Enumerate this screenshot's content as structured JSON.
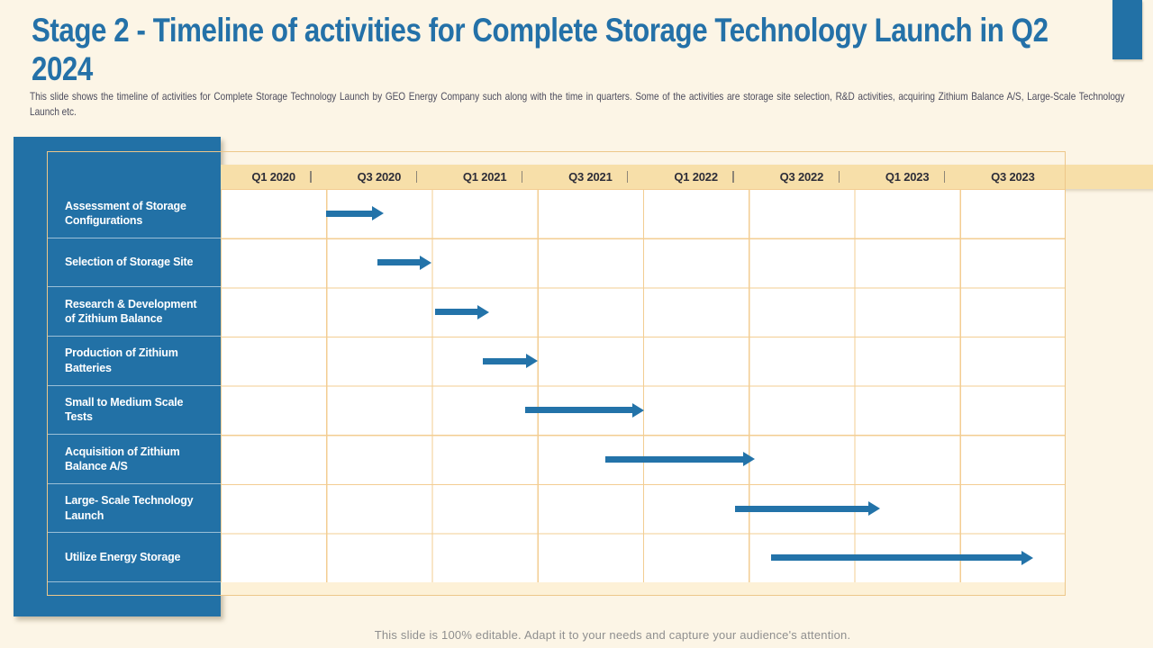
{
  "slide": {
    "title": "Stage 2 - Timeline of activities for Complete Storage Technology Launch in Q2 2024",
    "subtitle": "This slide shows the timeline of activities for Complete Storage Technology Launch by GEO Energy Company such along with the time in quarters. Some of the activities are storage site selection, R&D activities, acquiring Zithium Balance A/S, Large-Scale Technology Launch etc.",
    "footer": "This slide is 100% editable. Adapt it to your needs and capture your audience's attention."
  },
  "colors": {
    "background": "#fcf5e6",
    "title_blue": "#2471a8",
    "subtitle_text": "#4b4b5c",
    "panel_blue": "#2271a6",
    "arrow_blue": "#2373a9",
    "header_band": "#f7dfa9",
    "header_text": "#2d2d38",
    "grid_line": "#f3cd92",
    "table_border": "#edc78a",
    "bottom_strip": "#fdf1d7",
    "footer_text": "#8f8f8f"
  },
  "chart_data": {
    "type": "gantt-timeline",
    "title": "Timeline of activities for Complete Storage Technology Launch",
    "time_axis": [
      "Q1 2020",
      "Q3 2020",
      "Q1 2021",
      "Q3 2021",
      "Q1 2022",
      "Q3 2022",
      "Q1 2023",
      "Q3 2023"
    ],
    "axis_note": "each column spans two quarters; start_col/end_col are measured in column units (0 = left edge of Q1 2020 column, 8 = right edge of Q3 2023 column)",
    "activities": [
      {
        "label": "Assessment of Storage Configurations",
        "start_col": 1.0,
        "end_col": 1.54,
        "approx_period": "Q3 2020"
      },
      {
        "label": "Selection of Storage Site",
        "start_col": 1.48,
        "end_col": 2.0,
        "approx_period": "Q4 2020"
      },
      {
        "label": "Research & Development of Zithium Balance",
        "start_col": 2.03,
        "end_col": 2.54,
        "approx_period": "Q1 2021"
      },
      {
        "label": "Production of Zithium Batteries",
        "start_col": 2.48,
        "end_col": 3.0,
        "approx_period": "Q2 2021"
      },
      {
        "label": "Small to Medium Scale Tests",
        "start_col": 2.88,
        "end_col": 4.01,
        "approx_period": "Q3 2021 - Q4 2021"
      },
      {
        "label": "Acquisition of Zithium Balance A/S",
        "start_col": 3.64,
        "end_col": 5.06,
        "approx_period": "Q4 2021 - Q2 2022"
      },
      {
        "label": "Large- Scale Technology Launch",
        "start_col": 4.87,
        "end_col": 6.24,
        "approx_period": "Q3 2022 - Q1 2023"
      },
      {
        "label": "Utilize Energy Storage",
        "start_col": 5.21,
        "end_col": 7.69,
        "approx_period": "Q4 2022 - Q4 2023"
      }
    ]
  }
}
